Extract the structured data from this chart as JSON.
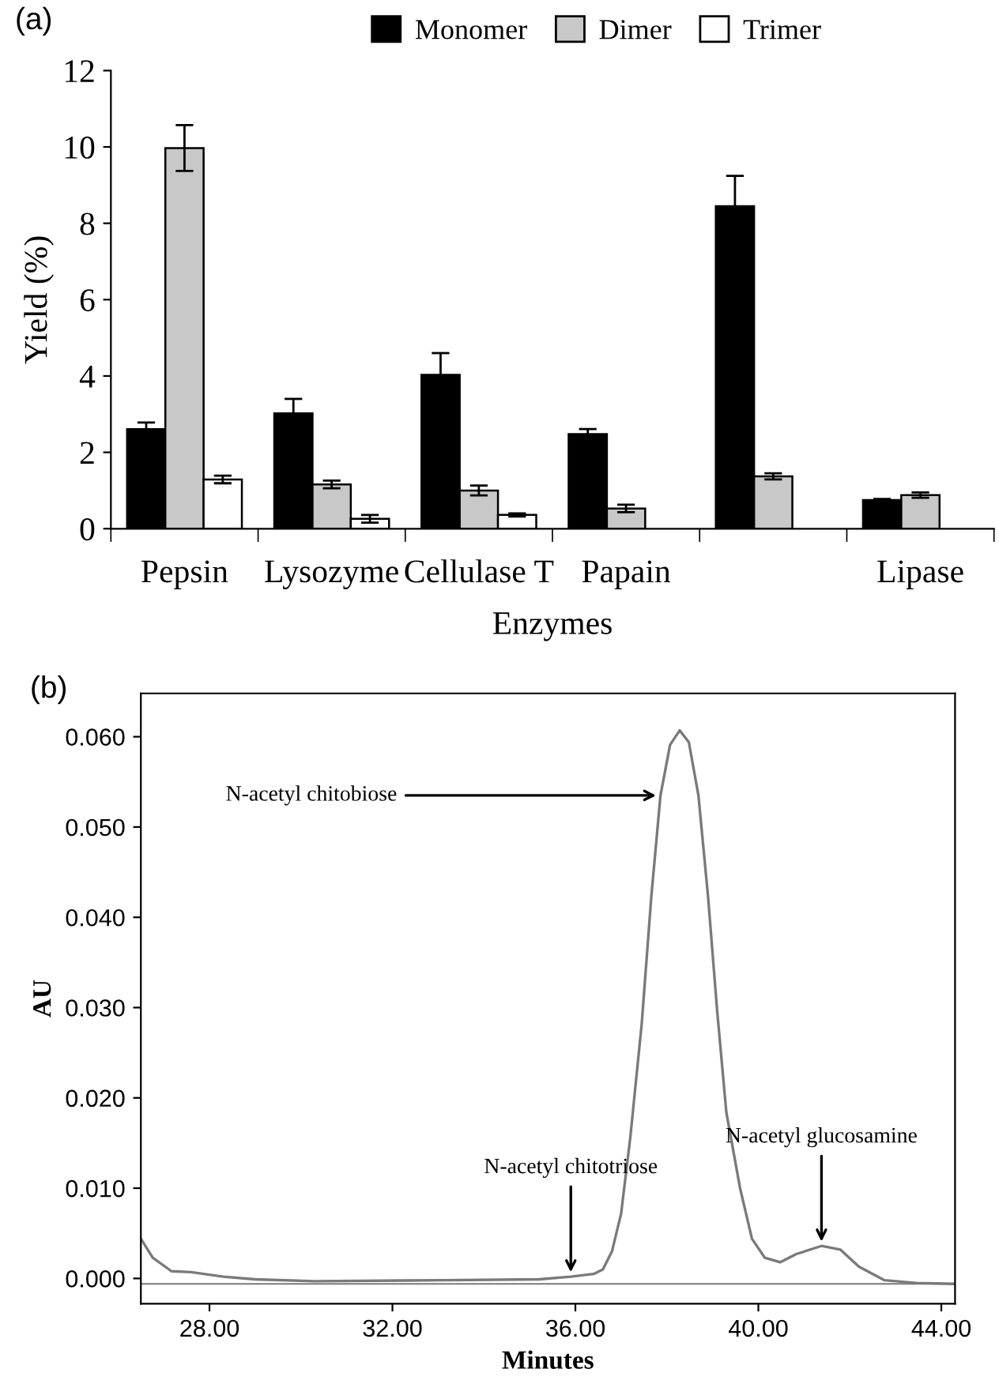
{
  "chart_data": [
    {
      "type": "bar",
      "title": "(a)",
      "xlabel": "Enzymes",
      "ylabel": "Yield (%)",
      "categories": [
        "Pepsin",
        "Lysozyme",
        "Cellulase T",
        "Papain",
        null,
        "Lipase"
      ],
      "series": [
        {
          "name": "Monomer",
          "color": "#000000",
          "values": [
            2.61,
            3.02,
            4.03,
            2.48,
            8.45,
            0.75
          ],
          "errors": [
            0.17,
            0.38,
            0.57,
            0.13,
            0.79,
            0.03
          ]
        },
        {
          "name": "Dimer",
          "color": "#c8c8c8",
          "values": [
            9.97,
            1.16,
            1.0,
            0.53,
            1.37,
            0.88
          ],
          "errors": [
            0.6,
            0.1,
            0.13,
            0.1,
            0.08,
            0.07
          ]
        },
        {
          "name": "Trimer",
          "color": "#ffffff",
          "values": [
            1.29,
            0.26,
            0.36,
            null,
            null,
            null
          ],
          "errors": [
            0.1,
            0.1,
            0.04,
            null,
            null,
            null
          ]
        }
      ],
      "ylim": [
        0,
        12
      ],
      "yticks": [
        0,
        2,
        4,
        6,
        8,
        10,
        12
      ],
      "legend": "top",
      "grid": false
    },
    {
      "type": "line",
      "title": "(b)",
      "xlabel": "Minutes",
      "ylabel": "AU",
      "series": [
        {
          "color": "#7a7a7a",
          "x": [
            26.5,
            26.76,
            27.17,
            27.6,
            28.3,
            29.0,
            30.3,
            33.1,
            35.2,
            35.9,
            36.4,
            36.6,
            36.8,
            37.0,
            37.2,
            37.45,
            37.66,
            37.86,
            38.07,
            38.28,
            38.48,
            38.69,
            38.9,
            39.1,
            39.3,
            39.6,
            39.86,
            40.14,
            40.48,
            40.83,
            41.38,
            41.79,
            42.2,
            42.76,
            43.45,
            44.3
          ],
          "values": [
            0.0044,
            0.0023,
            0.0008,
            0.0007,
            0.0002,
            -0.0001,
            -0.0003,
            -0.0002,
            -0.0001,
            0.0002,
            0.0005,
            0.001,
            0.003,
            0.0072,
            0.0156,
            0.0282,
            0.0423,
            0.0535,
            0.0591,
            0.0607,
            0.0594,
            0.0535,
            0.0423,
            0.0296,
            0.0184,
            0.01,
            0.0044,
            0.0023,
            0.0018,
            0.0027,
            0.0036,
            0.0032,
            0.0013,
            -0.0002,
            -0.0005,
            -0.0006
          ]
        }
      ],
      "ref_lines": [
        {
          "axis": "y",
          "value": -0.0006,
          "color": "#7a7a7a"
        }
      ],
      "annotations": [
        {
          "text": "N-acetyl chitobiose",
          "x": 37.86,
          "y": 0.0535
        },
        {
          "text": "N-acetyl chitotriose",
          "x": 35.9,
          "y": 0.0002
        },
        {
          "text": "N-acetyl glucosamine",
          "x": 41.38,
          "y": 0.0036
        }
      ],
      "xlim": [
        26.5,
        44.3
      ],
      "ylim": [
        -0.0028,
        0.0648
      ],
      "xticks": [
        {
          "value": 28,
          "label": "28.00"
        },
        {
          "value": 32,
          "label": "32.00"
        },
        {
          "value": 36,
          "label": "36.00"
        },
        {
          "value": 40,
          "label": "40.00"
        },
        {
          "value": 44,
          "label": "44.00"
        }
      ],
      "yticks": [
        {
          "value": 0,
          "label": "0.000"
        },
        {
          "value": 0.01,
          "label": "0.010"
        },
        {
          "value": 0.02,
          "label": "0.020"
        },
        {
          "value": 0.03,
          "label": "0.030"
        },
        {
          "value": 0.04,
          "label": "0.040"
        },
        {
          "value": 0.05,
          "label": "0.050"
        },
        {
          "value": 0.06,
          "label": "0.060"
        }
      ],
      "grid": false,
      "legend": false,
      "marker": "none",
      "line_style": "solid"
    }
  ]
}
